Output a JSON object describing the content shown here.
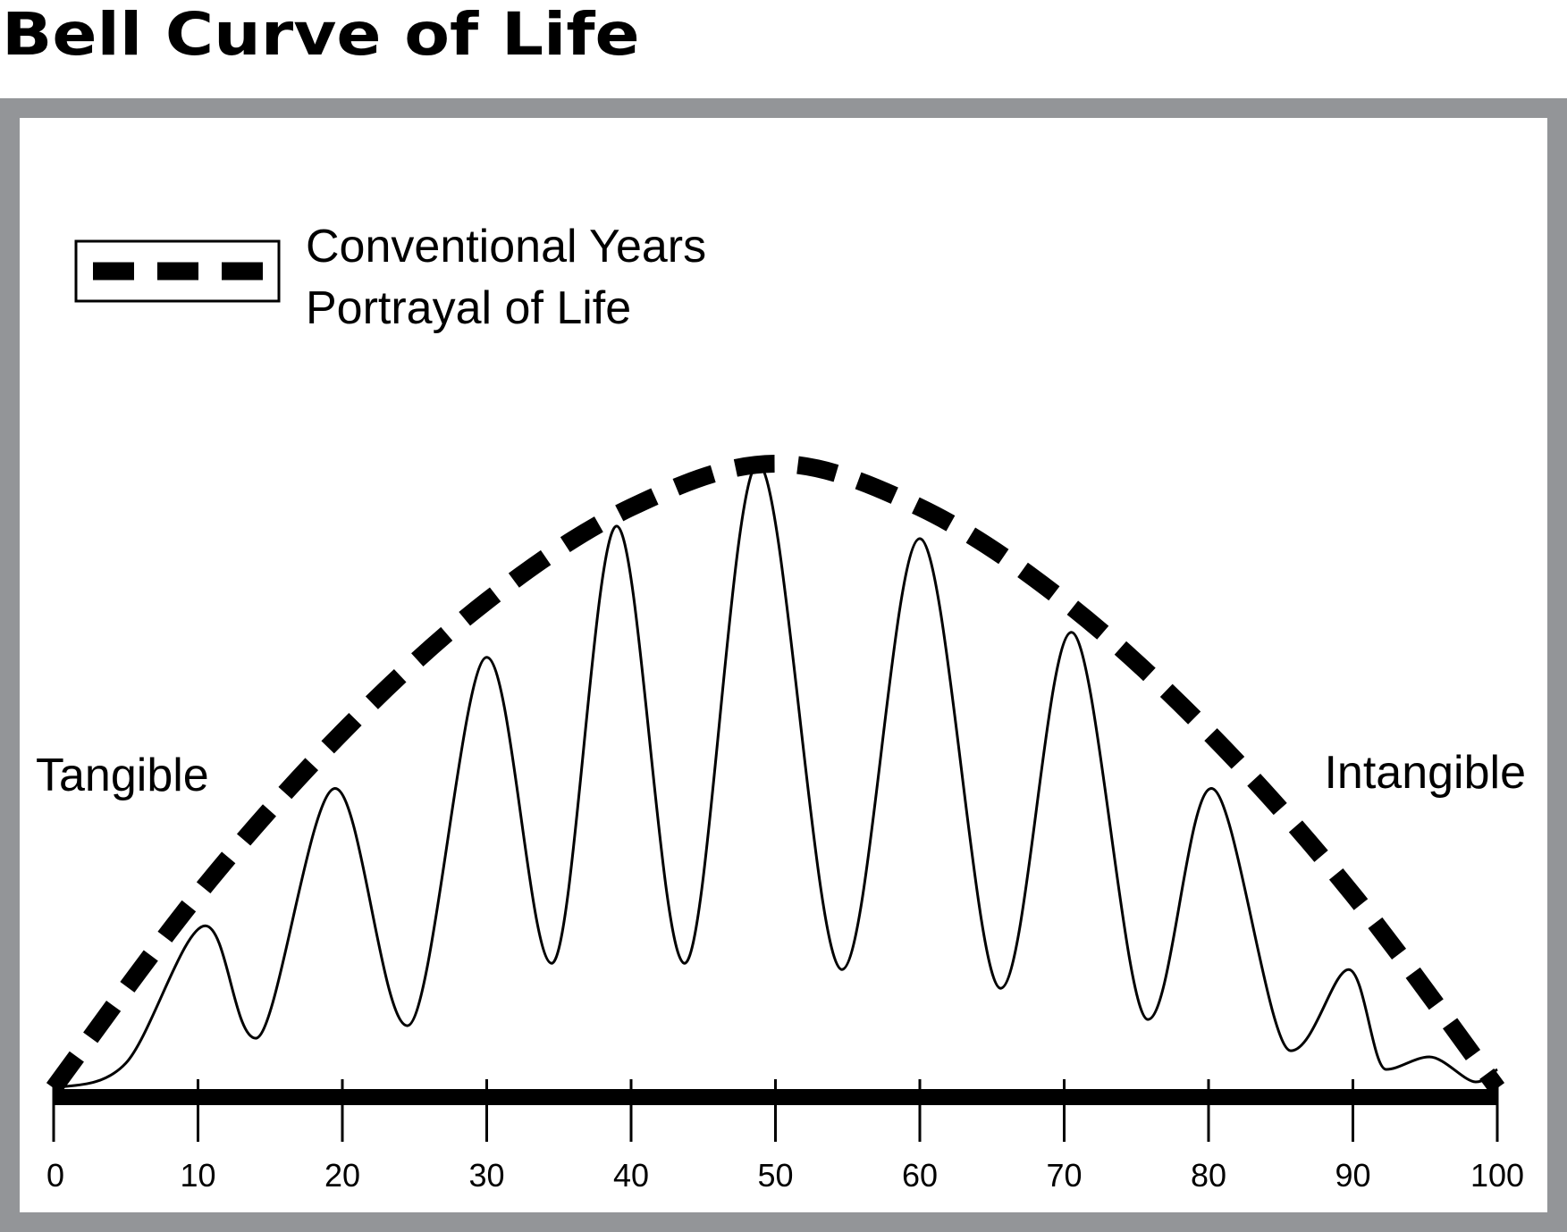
{
  "title": "Bell Curve of Life",
  "chart_data": {
    "type": "line",
    "title": "Bell Curve of Life",
    "xlabel": "",
    "ylabel": "",
    "xlim": [
      0,
      100
    ],
    "x_ticks": [
      "0",
      "10",
      "20",
      "30",
      "40",
      "50",
      "60",
      "70",
      "80",
      "90",
      "100"
    ],
    "left_label": "Tangible",
    "right_label": "Intangible",
    "legend": {
      "label_line1": "Conventional Years",
      "label_line2": "Portrayal of Life",
      "placement": "top-left",
      "style": "dashed"
    },
    "series": [
      {
        "name": "Conventional Years Portrayal of Life",
        "style": "dashed",
        "x": [
          0,
          10,
          20,
          30,
          40,
          50,
          60,
          70,
          80,
          90,
          100
        ],
        "y": [
          0,
          31,
          57,
          78,
          93,
          100,
          93,
          78,
          57,
          31,
          0
        ]
      },
      {
        "name": "",
        "style": "solid",
        "x": [
          0,
          5,
          10.5,
          14,
          19.5,
          24.5,
          30,
          34.5,
          39,
          43.7,
          48.8,
          54.6,
          60,
          65.6,
          70.5,
          75.8,
          80.2,
          85.7,
          89.7,
          92.3,
          95.3,
          98.5,
          100
        ],
        "y": [
          0,
          4,
          26,
          8,
          48,
          10,
          69,
          20,
          90,
          20,
          100,
          19,
          88,
          16,
          73,
          11,
          48,
          6,
          19,
          3,
          5,
          1,
          3
        ]
      }
    ]
  }
}
